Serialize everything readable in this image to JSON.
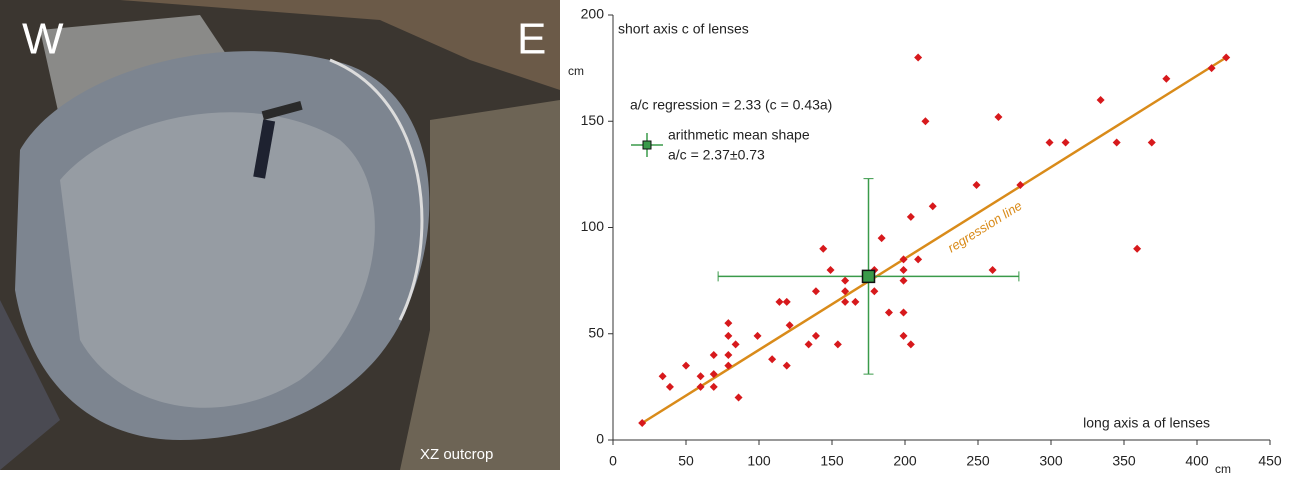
{
  "photo": {
    "left_label": "W",
    "right_label": "E",
    "caption": "XZ outcrop"
  },
  "chart_data": {
    "type": "scatter",
    "y_label": "short axis c of lenses",
    "x_label": "long axis a of lenses",
    "x_unit": "cm",
    "y_unit": "cm",
    "regression_text": "a/c regression = 2.33 (c = 0.43a)",
    "regression_label": "regression line",
    "mean_legend": "arithmetic mean shape",
    "mean_text": "a/c = 2.37±0.73",
    "xlim": [
      0,
      450
    ],
    "ylim": [
      0,
      200
    ],
    "xticks": [
      0,
      50,
      100,
      150,
      200,
      250,
      300,
      350,
      400,
      450
    ],
    "yticks": [
      0,
      50,
      100,
      150,
      200
    ],
    "series": [
      {
        "name": "lenses",
        "color": "#d7191c",
        "x": [
          20,
          34,
          39,
          50,
          60,
          60,
          69,
          69,
          69,
          79,
          79,
          79,
          79,
          84,
          86,
          99,
          109,
          114,
          119,
          119,
          121,
          134,
          139,
          139,
          144,
          149,
          154,
          159,
          159,
          159,
          166,
          179,
          179,
          184,
          189,
          199,
          199,
          199,
          199,
          199,
          204,
          204,
          209,
          209,
          214,
          219,
          249,
          260,
          264,
          279,
          299,
          310,
          334,
          345,
          359,
          369,
          379,
          410,
          420
        ],
        "values": [
          8,
          30,
          25,
          35,
          30,
          25,
          31,
          40,
          25,
          55,
          49,
          40,
          35,
          45,
          20,
          49,
          38,
          65,
          65,
          35,
          54,
          45,
          49,
          70,
          90,
          80,
          45,
          70,
          75,
          65,
          65,
          70,
          80,
          95,
          60,
          80,
          75,
          60,
          49,
          85,
          45,
          105,
          85,
          180,
          150,
          110,
          120,
          80,
          152,
          120,
          140,
          140,
          160,
          140,
          90,
          140,
          170,
          175,
          180
        ]
      }
    ],
    "regression": {
      "color": "#d98b1a",
      "x": [
        20,
        420
      ],
      "values": [
        8,
        180
      ]
    },
    "mean": {
      "color": "#3a9a4a",
      "x": 175,
      "y": 77,
      "xerr": 103,
      "yerr": 46
    }
  }
}
